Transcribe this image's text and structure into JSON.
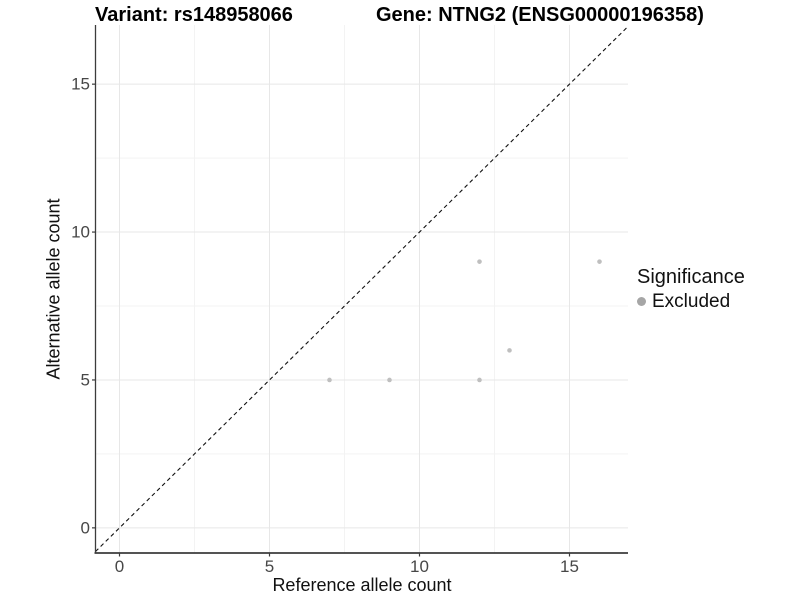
{
  "header": {
    "title_left": "Variant: rs148958066",
    "title_right": "Gene: NTNG2 (ENSG00000196358)"
  },
  "legend": {
    "title": "Significance",
    "items": [
      {
        "label": "Excluded",
        "marker_color": "#a6a6a6"
      }
    ]
  },
  "chart_data": {
    "type": "scatter",
    "title": "Variant: rs148958066  |  Gene: NTNG2 (ENSG00000196358)",
    "xlabel": "Reference allele count",
    "ylabel": "Alternative allele count",
    "xlim": [
      -0.8,
      16.95
    ],
    "ylim": [
      -0.85,
      17.0
    ],
    "xticks": [
      0,
      5,
      10,
      15
    ],
    "yticks": [
      0,
      5,
      10,
      15
    ],
    "x_minor_gridlines": [
      2.5,
      7.5,
      12.5
    ],
    "y_minor_gridlines": [
      2.5,
      7.5,
      12.5
    ],
    "grid": true,
    "legend_position": "right",
    "series": [
      {
        "name": "Excluded",
        "color": "#bfbfbf",
        "points": [
          {
            "x": 7,
            "y": 5
          },
          {
            "x": 9,
            "y": 5
          },
          {
            "x": 12,
            "y": 5
          },
          {
            "x": 12,
            "y": 9
          },
          {
            "x": 13,
            "y": 6
          },
          {
            "x": 16,
            "y": 9
          }
        ]
      }
    ],
    "reference_line": {
      "type": "identity",
      "slope": 1,
      "intercept": 0,
      "style": "dashed",
      "color": "#111111"
    },
    "style": {
      "grid_major_color": "#e7e7e7",
      "grid_minor_color": "#f3f3f3",
      "axis_line_color": "#3c3c3c",
      "point_radius": 2.3,
      "background": "#ffffff"
    }
  }
}
